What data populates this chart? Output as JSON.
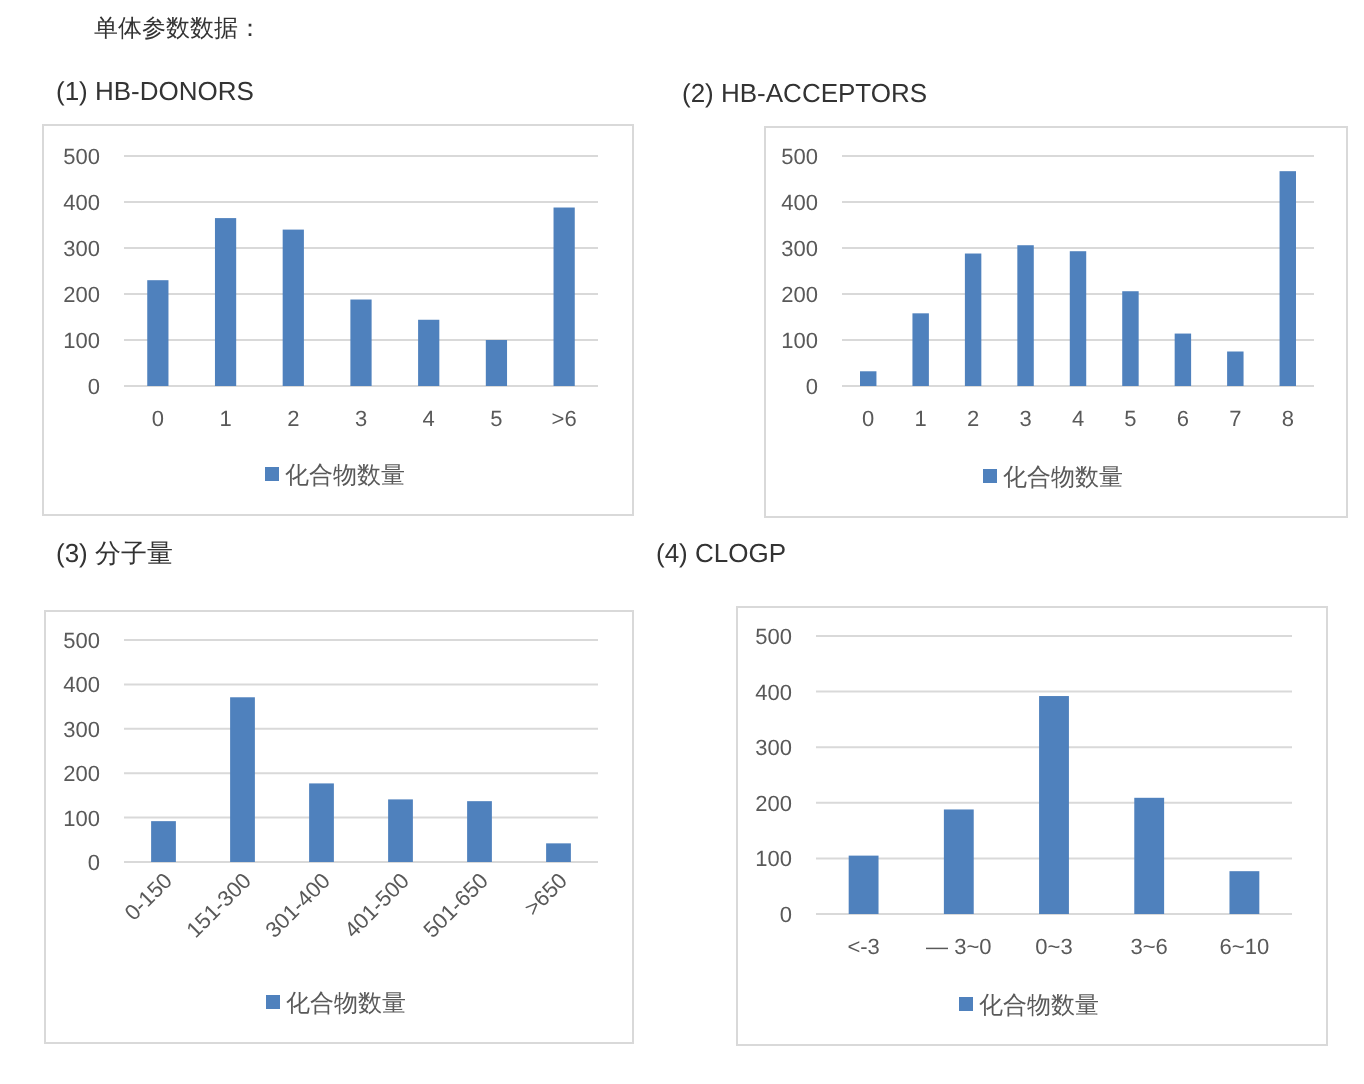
{
  "chart_data": [
    {
      "type": "bar",
      "title": "(1) HB-DONORS",
      "annotations": [
        "单体参数数据："
      ],
      "categories": [
        "0",
        "1",
        "2",
        "3",
        "4",
        "5",
        ">6"
      ],
      "series": [
        {
          "name": "化合物数量",
          "color": "#4f81bd",
          "values": [
            230,
            365,
            340,
            188,
            144,
            100,
            388
          ]
        }
      ],
      "ylim": [
        0,
        500
      ],
      "yticks": [
        0,
        100,
        200,
        300,
        400,
        500
      ],
      "grid": "y",
      "legend": "bottom"
    },
    {
      "type": "bar",
      "title": "(2) HB-ACCEPTORS",
      "categories": [
        "0",
        "1",
        "2",
        "3",
        "4",
        "5",
        "6",
        "7",
        "8"
      ],
      "series": [
        {
          "name": "化合物数量",
          "color": "#4f81bd",
          "values": [
            32,
            158,
            288,
            306,
            293,
            206,
            114,
            75,
            467
          ]
        }
      ],
      "ylim": [
        0,
        500
      ],
      "yticks": [
        0,
        100,
        200,
        300,
        400,
        500
      ],
      "grid": "y",
      "legend": "bottom"
    },
    {
      "type": "bar",
      "title": "(3) 分子量",
      "categories": [
        "0-150",
        "151-300",
        "301-400",
        "401-500",
        "501-650",
        ">650"
      ],
      "series": [
        {
          "name": "化合物数量",
          "color": "#4f81bd",
          "values": [
            92,
            371,
            177,
            141,
            137,
            42
          ]
        }
      ],
      "ylim": [
        0,
        500
      ],
      "yticks": [
        0,
        100,
        200,
        300,
        400,
        500
      ],
      "grid": "y",
      "legend": "bottom"
    },
    {
      "type": "bar",
      "title": "(4) CLOGP",
      "categories": [
        "<-3",
        "— 3~0",
        "0~3",
        "3~6",
        "6~10"
      ],
      "series": [
        {
          "name": "化合物数量",
          "color": "#4f81bd",
          "values": [
            105,
            188,
            392,
            209,
            77
          ]
        }
      ],
      "ylim": [
        0,
        500
      ],
      "yticks": [
        0,
        100,
        200,
        300,
        400,
        500
      ],
      "grid": "y",
      "legend": "bottom"
    }
  ]
}
